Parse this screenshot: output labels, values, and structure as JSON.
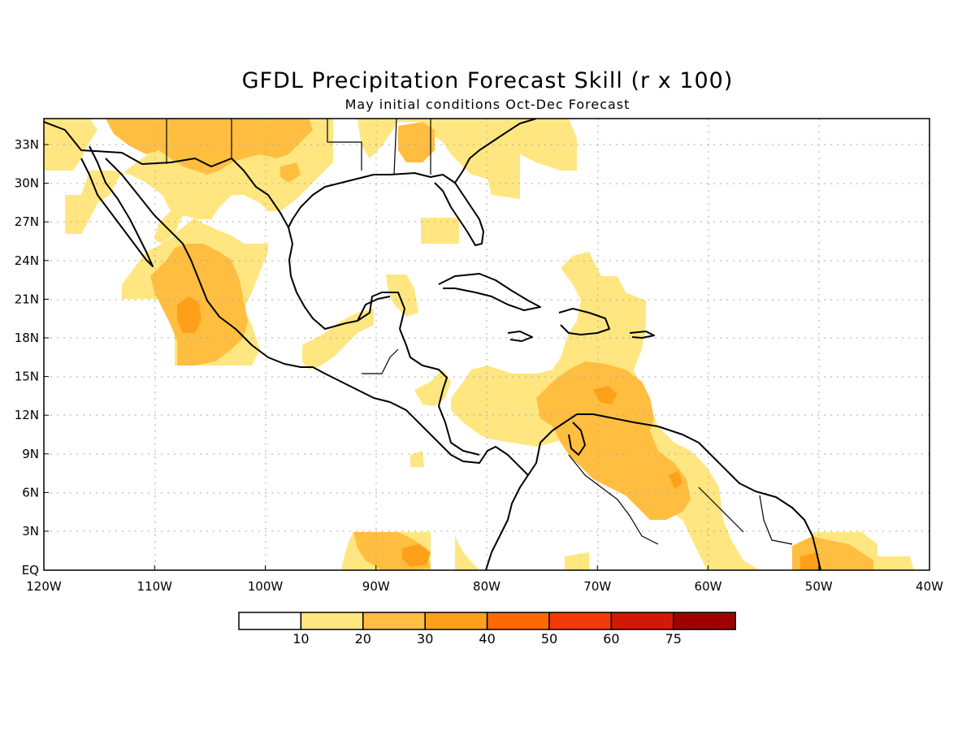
{
  "title": "GFDL Precipitation Forecast Skill (r x 100)",
  "subtitle": "May initial conditions  Oct-Dec Forecast",
  "lat_labels": [
    "33N",
    "30N",
    "27N",
    "24N",
    "21N",
    "18N",
    "15N",
    "12N",
    "9N",
    "6N",
    "3N",
    "EQ"
  ],
  "lon_labels": [
    "120W",
    "110W",
    "100W",
    "90W",
    "80W",
    "70W",
    "60W",
    "50W",
    "40W"
  ],
  "legend": {
    "labels": [
      "10",
      "20",
      "30",
      "40",
      "50",
      "60",
      "75"
    ],
    "colors": [
      "#ffffff",
      "#ffe680",
      "#ffbe40",
      "#ffa01a",
      "#ff6a00",
      "#f23a0a",
      "#d41808",
      "#a00000"
    ]
  },
  "map": {
    "extent": {
      "lon": [
        -120,
        -40
      ],
      "lat": [
        0,
        35
      ]
    },
    "grid": "dotted",
    "land_color": "#ffffff",
    "coastline_color": "#000000"
  }
}
